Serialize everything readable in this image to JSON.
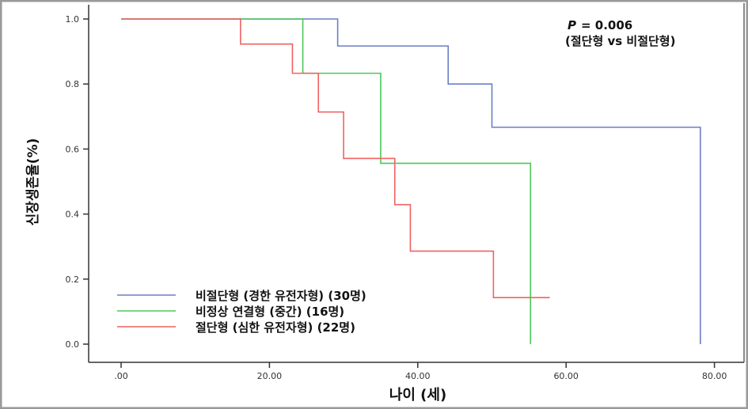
{
  "chart_data": {
    "type": "line",
    "subtype": "kaplan-meier step",
    "xlabel": "나이 (세)",
    "ylabel": "신장생존율(%)",
    "xlim": [
      -4,
      84
    ],
    "ylim": [
      -0.05,
      1.02
    ],
    "xticks": [
      0,
      20,
      40,
      60,
      80
    ],
    "xtick_labels": [
      ".00",
      "20.00",
      "40.00",
      "60.00",
      "80.00"
    ],
    "yticks": [
      0,
      0.2,
      0.4,
      0.6,
      0.8,
      1.0
    ],
    "ytick_labels": [
      "0.0",
      "0.2",
      "0.4",
      "0.6",
      "0.8",
      "1.0"
    ],
    "grid": false,
    "legend_position": "bottom-left",
    "annotation": {
      "p_label": "P",
      "p_value": "= 0.006",
      "comparison": "(절단형 vs 비절단형)"
    },
    "series": [
      {
        "name": "비절단형 (경한 유전자형) (30명)",
        "color": "#6b7fc4",
        "x": [
          0,
          29.2,
          44.1,
          50.0,
          78.1
        ],
        "y": [
          1.0,
          0.917,
          0.8,
          0.667,
          0.0
        ],
        "end_x": 78.1
      },
      {
        "name": "비정상 연결형 (중간) (16명)",
        "color": "#4cc75a",
        "x": [
          0,
          24.5,
          35.0,
          55.2
        ],
        "y": [
          1.0,
          0.833,
          0.556,
          0.0
        ],
        "end_x": 55.2
      },
      {
        "name": "절단형 (심한 유전자형) (22명)",
        "color": "#f06262",
        "x": [
          0,
          16.1,
          23.1,
          26.6,
          30.0,
          36.9,
          39.0,
          50.2
        ],
        "y": [
          1.0,
          0.923,
          0.833,
          0.714,
          0.571,
          0.429,
          0.286,
          0.143
        ],
        "end_x": 57.8
      }
    ]
  }
}
